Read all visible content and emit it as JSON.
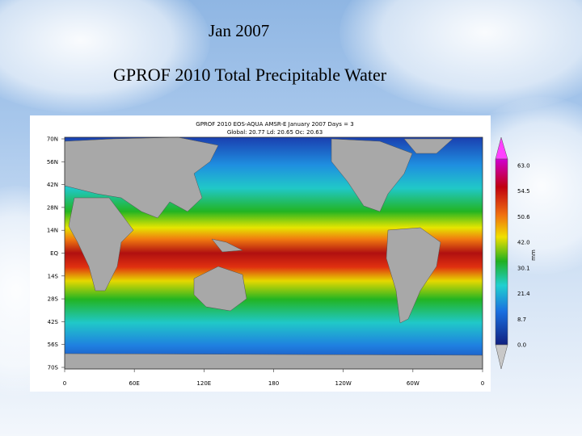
{
  "slide": {
    "title": "Jan 2007",
    "subtitle": "GPROF 2010 Total Precipitable Water"
  },
  "map": {
    "header": [
      "GPROF 2010   EOS-AQUA   AMSR-E   January 2007   Days = 3",
      "Global: 20.77   Ld: 20.65   Oc: 20.63"
    ],
    "lat_labels": [
      "70N",
      "56N",
      "42N",
      "28N",
      "14N",
      "EQ",
      "14S",
      "28S",
      "42S",
      "56S",
      "70S"
    ],
    "lon_labels": [
      "0",
      "60E",
      "120E",
      "180",
      "120W",
      "60W",
      "0"
    ],
    "colorbar_labels": [
      "63.0",
      "54.5",
      "50.6",
      "42.0",
      "30.1",
      "21.4",
      "8.7",
      "0.0"
    ],
    "colorbar_unit": "mm"
  }
}
